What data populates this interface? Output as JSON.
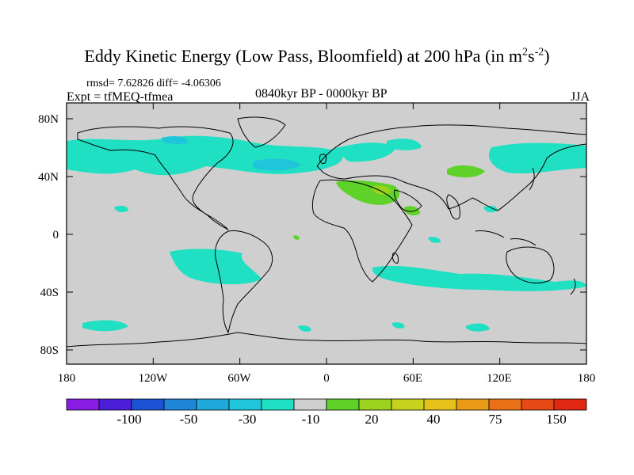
{
  "title": {
    "main": "Eddy Kinetic Energy (Low Pass, Bloomfield) at 200 hPa (in m",
    "sup1": "2",
    "mid": "s",
    "sup2": "-2",
    "end": ")"
  },
  "stats": "rmsd= 7.62826 diff= -4.06306",
  "experiment": "Expt = tfMEQ-tfmea",
  "period": "0840kyr BP - 0000kyr BP",
  "season": "JJA",
  "lat_labels": [
    "80N",
    "40N",
    "0",
    "40S",
    "80S"
  ],
  "lon_labels": [
    "180",
    "120W",
    "60W",
    "0",
    "60E",
    "120E",
    "180"
  ],
  "colorbar": {
    "colors": [
      "#8a1de3",
      "#4b1fd9",
      "#1c53d6",
      "#1e86d9",
      "#1fa9dd",
      "#1fc6db",
      "#20e0c3",
      "#cfcfcf",
      "#5fd22a",
      "#9ad21e",
      "#c7d21c",
      "#e4c21a",
      "#e89a18",
      "#e97016",
      "#e64a14",
      "#e02812"
    ],
    "labels": [
      "-100",
      "-50",
      "-30",
      "-10",
      "20",
      "40",
      "75",
      "150"
    ]
  },
  "legend_colors": {
    "land_ocean_background": "#cfcfcf",
    "weak_negative": "#20e0c3",
    "moderate_negative": "#1fc6db",
    "weak_positive": "#5fd22a",
    "moderate_positive": "#9ad21e"
  }
}
